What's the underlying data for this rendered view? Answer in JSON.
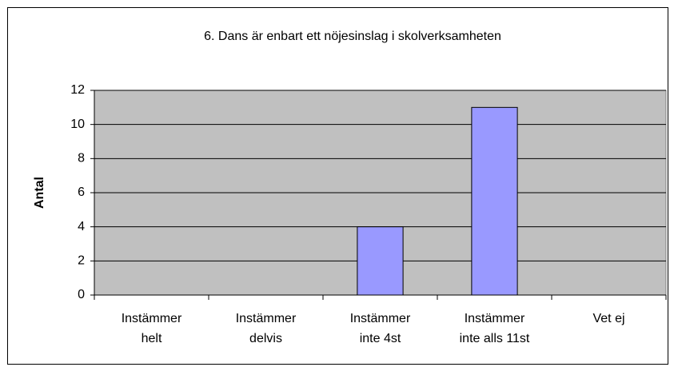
{
  "chart_data": {
    "type": "bar",
    "title": "6. Dans är enbart ett nöjesinslag i skolverksamheten",
    "y_label": "Antal",
    "categories": [
      [
        "Instämmer",
        "helt"
      ],
      [
        "Instämmer",
        "delvis"
      ],
      [
        "Instämmer",
        "inte 4st"
      ],
      [
        "Instämmer",
        "inte alls 11st"
      ],
      [
        "Vet ej"
      ]
    ],
    "values": [
      0,
      0,
      4,
      11,
      0
    ],
    "color": "#9999ff",
    "ylim": [
      0,
      12
    ],
    "yticks": [
      0,
      2,
      4,
      6,
      8,
      10,
      12
    ],
    "grid": true
  }
}
